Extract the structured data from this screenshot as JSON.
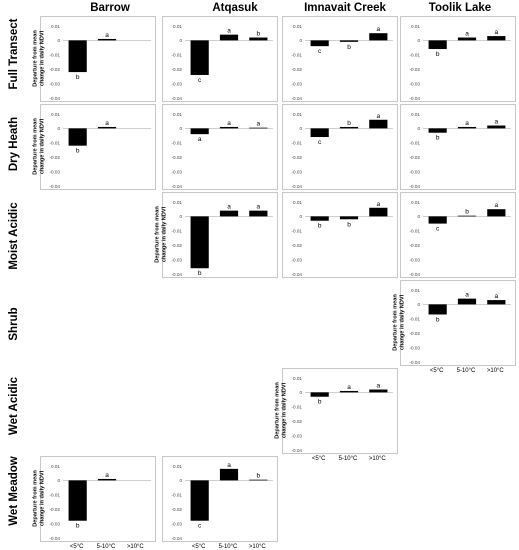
{
  "columns": [
    "Barrow",
    "Atqasuk",
    "Imnavait Creek",
    "Toolik Lake"
  ],
  "rows": [
    "Full Transect",
    "Dry Heath",
    "Moist Acidic",
    "Shrub",
    "Wet Acidic",
    "Wet Meadow"
  ],
  "ylabel_line1": "Departure from mean",
  "ylabel_line2": "change in daily NDVI",
  "categories": [
    "<5°C",
    "5-10°C",
    ">10°C"
  ],
  "colors": {
    "bar": "#000000",
    "frame": "#c8c8c8",
    "gridline": "#bfbfbf"
  },
  "chart_data": [
    {
      "type": "bar",
      "row": "Full Transect",
      "column": "Barrow",
      "categories": [
        "<5°C",
        "5-10°C",
        ">10°C"
      ],
      "values": [
        -0.022,
        0.001,
        0.0
      ],
      "letters": [
        "b",
        "a",
        ""
      ],
      "yticks": [
        "0.01",
        "0",
        "-0.01",
        "-0.02",
        "-0.03",
        "-0.04"
      ],
      "ylim": [
        -0.04,
        0.01
      ],
      "show_ylabel": true,
      "show_xticks": false
    },
    {
      "type": "bar",
      "row": "Full Transect",
      "column": "Atqasuk",
      "categories": [
        "<5°C",
        "5-10°C",
        ">10°C"
      ],
      "values": [
        -0.024,
        0.004,
        0.002
      ],
      "letters": [
        "c",
        "a",
        "b"
      ],
      "yticks": [
        "0.01",
        "0",
        "-0.01",
        "-0.02",
        "-0.03",
        "-0.04"
      ],
      "ylim": [
        -0.04,
        0.01
      ],
      "show_ylabel": false,
      "show_xticks": false
    },
    {
      "type": "bar",
      "row": "Full Transect",
      "column": "Imnavait Creek",
      "categories": [
        "<5°C",
        "5-10°C",
        ">10°C"
      ],
      "values": [
        -0.004,
        -0.001,
        0.005
      ],
      "letters": [
        "c",
        "b",
        "a"
      ],
      "yticks": [
        "0.01",
        "0",
        "-0.01",
        "-0.02",
        "-0.03",
        "-0.04"
      ],
      "ylim": [
        -0.04,
        0.01
      ],
      "show_ylabel": false,
      "show_xticks": false
    },
    {
      "type": "bar",
      "row": "Full Transect",
      "column": "Toolik Lake",
      "categories": [
        "<5°C",
        "5-10°C",
        ">10°C"
      ],
      "values": [
        -0.006,
        0.002,
        0.003
      ],
      "letters": [
        "b",
        "a",
        "a"
      ],
      "yticks": [
        "0.01",
        "0",
        "-0.01",
        "-0.02",
        "-0.03",
        "-0.04"
      ],
      "ylim": [
        -0.04,
        0.01
      ],
      "show_ylabel": false,
      "show_xticks": false
    },
    {
      "type": "bar",
      "row": "Dry Heath",
      "column": "Barrow",
      "categories": [
        "<5°C",
        "5-10°C",
        ">10°C"
      ],
      "values": [
        -0.012,
        0.001,
        0.0
      ],
      "letters": [
        "b",
        "a",
        ""
      ],
      "yticks": [
        "0.01",
        "0",
        "-0.01",
        "-0.02",
        "-0.03",
        "-0.04"
      ],
      "ylim": [
        -0.04,
        0.01
      ],
      "show_ylabel": true,
      "show_xticks": false
    },
    {
      "type": "bar",
      "row": "Dry Heath",
      "column": "Atqasuk",
      "categories": [
        "<5°C",
        "5-10°C",
        ">10°C"
      ],
      "values": [
        -0.004,
        0.001,
        0.0005
      ],
      "letters": [
        "a",
        "a",
        "a"
      ],
      "yticks": [
        "0.01",
        "0",
        "-0.01",
        "-0.02",
        "-0.03",
        "-0.04"
      ],
      "ylim": [
        -0.04,
        0.01
      ],
      "show_ylabel": false,
      "show_xticks": false
    },
    {
      "type": "bar",
      "row": "Dry Heath",
      "column": "Imnavait Creek",
      "categories": [
        "<5°C",
        "5-10°C",
        ">10°C"
      ],
      "values": [
        -0.006,
        0.001,
        0.006
      ],
      "letters": [
        "c",
        "b",
        "a"
      ],
      "yticks": [
        "0.01",
        "0",
        "-0.01",
        "-0.02",
        "-0.03",
        "-0.04"
      ],
      "ylim": [
        -0.04,
        0.01
      ],
      "show_ylabel": false,
      "show_xticks": false
    },
    {
      "type": "bar",
      "row": "Dry Heath",
      "column": "Toolik Lake",
      "categories": [
        "<5°C",
        "5-10°C",
        ">10°C"
      ],
      "values": [
        -0.003,
        0.001,
        0.002
      ],
      "letters": [
        "b",
        "a",
        "a"
      ],
      "yticks": [
        "0.01",
        "0",
        "-0.01",
        "-0.02",
        "-0.03",
        "-0.04"
      ],
      "ylim": [
        -0.04,
        0.01
      ],
      "show_ylabel": false,
      "show_xticks": false
    },
    {
      "type": "bar",
      "row": "Moist Acidic",
      "column": "Atqasuk",
      "categories": [
        "<5°C",
        "5-10°C",
        ">10°C"
      ],
      "values": [
        -0.036,
        0.004,
        0.004
      ],
      "letters": [
        "b",
        "a",
        "a"
      ],
      "yticks": [
        "0.01",
        "0",
        "-0.01",
        "-0.02",
        "-0.03",
        "-0.04"
      ],
      "ylim": [
        -0.04,
        0.01
      ],
      "show_ylabel": true,
      "show_xticks": false
    },
    {
      "type": "bar",
      "row": "Moist Acidic",
      "column": "Imnavait Creek",
      "categories": [
        "<5°C",
        "5-10°C",
        ">10°C"
      ],
      "values": [
        -0.003,
        -0.002,
        0.006
      ],
      "letters": [
        "b",
        "b",
        "a"
      ],
      "yticks": [
        "0.01",
        "0",
        "-0.01",
        "-0.02",
        "-0.03",
        "-0.04"
      ],
      "ylim": [
        -0.04,
        0.01
      ],
      "show_ylabel": false,
      "show_xticks": false
    },
    {
      "type": "bar",
      "row": "Moist Acidic",
      "column": "Toolik Lake",
      "categories": [
        "<5°C",
        "5-10°C",
        ">10°C"
      ],
      "values": [
        -0.005,
        0.0005,
        0.005
      ],
      "letters": [
        "c",
        "b",
        "a"
      ],
      "yticks": [
        "0.01",
        "0",
        "-0.01",
        "-0.02",
        "-0.03",
        "-0.04"
      ],
      "ylim": [
        -0.04,
        0.01
      ],
      "show_ylabel": false,
      "show_xticks": false
    },
    {
      "type": "bar",
      "row": "Shrub",
      "column": "Toolik Lake",
      "categories": [
        "<5°C",
        "5-10°C",
        ">10°C"
      ],
      "values": [
        -0.007,
        0.004,
        0.003
      ],
      "letters": [
        "b",
        "a",
        "a"
      ],
      "yticks": [
        "0.01",
        "0",
        "-0.01",
        "-0.02",
        "-0.03",
        "-0.04"
      ],
      "ylim": [
        -0.04,
        0.01
      ],
      "show_ylabel": true,
      "show_xticks": true
    },
    {
      "type": "bar",
      "row": "Wet Acidic",
      "column": "Imnavait Creek",
      "categories": [
        "<5°C",
        "5-10°C",
        ">10°C"
      ],
      "values": [
        -0.003,
        0.001,
        0.002
      ],
      "letters": [
        "b",
        "a",
        "a"
      ],
      "yticks": [
        "0.01",
        "0",
        "-0.01",
        "-0.02",
        "-0.03",
        "-0.04"
      ],
      "ylim": [
        -0.04,
        0.01
      ],
      "show_ylabel": true,
      "show_xticks": true
    },
    {
      "type": "bar",
      "row": "Wet Meadow",
      "column": "Barrow",
      "categories": [
        "<5°C",
        "5-10°C",
        ">10°C"
      ],
      "values": [
        -0.028,
        0.001,
        0.0
      ],
      "letters": [
        "b",
        "a",
        ""
      ],
      "yticks": [
        "0.01",
        "0",
        "-0.01",
        "-0.02",
        "-0.03",
        "-0.04"
      ],
      "ylim": [
        -0.04,
        0.01
      ],
      "show_ylabel": true,
      "show_xticks": true
    },
    {
      "type": "bar",
      "row": "Wet Meadow",
      "column": "Atqasuk",
      "categories": [
        "<5°C",
        "5-10°C",
        ">10°C"
      ],
      "values": [
        -0.028,
        0.008,
        0.0005
      ],
      "letters": [
        "c",
        "a",
        "b"
      ],
      "yticks": [
        "0.01",
        "0",
        "-0.01",
        "-0.02",
        "-0.03",
        "-0.04"
      ],
      "ylim": [
        -0.04,
        0.01
      ],
      "show_ylabel": false,
      "show_xticks": true
    }
  ]
}
